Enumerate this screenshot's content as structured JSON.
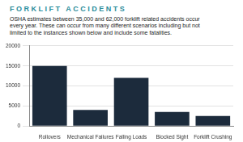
{
  "chart_data": {
    "type": "bar",
    "title": "FORKLIFT ACCIDENTS",
    "subtitle": "OSHA estimates between 35,000 and 62,000 forklift related accidents occur every year. These can occur from many different scenarios including but not limited to the instances shown below and include some fatalities.",
    "categories": [
      "Rollovers",
      "Mechanical Failures",
      "Falling Loads",
      "Blocked Sight",
      "Forklift Crushing"
    ],
    "values": [
      15000,
      4000,
      12000,
      3500,
      2500
    ],
    "color": "#1c2b3c",
    "ylim": [
      0,
      20000
    ],
    "yticks": [
      0,
      5000,
      10000,
      15000,
      20000
    ],
    "grid": true
  }
}
